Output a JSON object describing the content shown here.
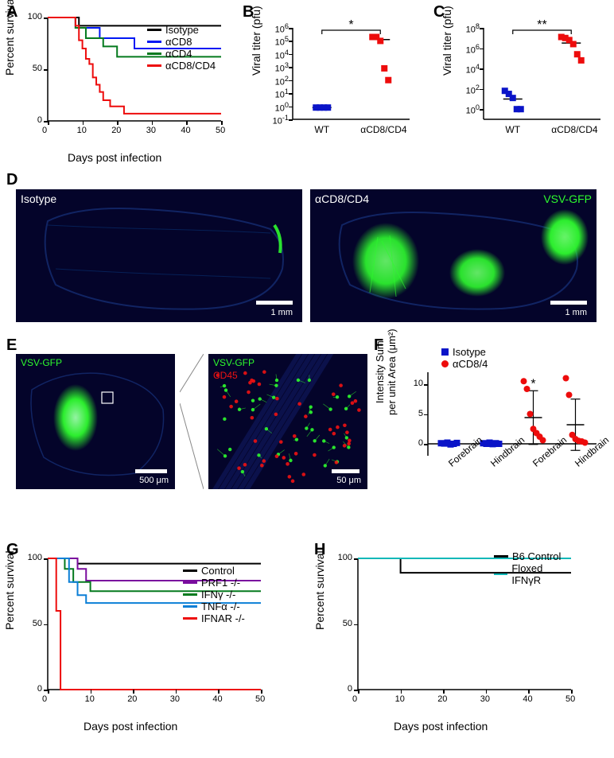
{
  "panelA": {
    "label": "A",
    "type": "line",
    "ylabel": "Percent survival",
    "xlabel": "Days post infection",
    "xlim": [
      0,
      50
    ],
    "ylim": [
      0,
      100
    ],
    "xticks": [
      0,
      10,
      20,
      30,
      40,
      50
    ],
    "yticks": [
      0,
      50,
      100
    ],
    "series": [
      {
        "name": "Isotype",
        "color": "#000000",
        "points": [
          [
            0,
            100
          ],
          [
            9,
            100
          ],
          [
            9,
            92
          ],
          [
            50,
            92
          ]
        ]
      },
      {
        "name": "αCD8",
        "color": "#0018f4",
        "points": [
          [
            0,
            100
          ],
          [
            8,
            100
          ],
          [
            8,
            90
          ],
          [
            15,
            90
          ],
          [
            15,
            80
          ],
          [
            25,
            80
          ],
          [
            25,
            70
          ],
          [
            50,
            70
          ]
        ]
      },
      {
        "name": "αCD4",
        "color": "#057a1e",
        "points": [
          [
            0,
            100
          ],
          [
            8,
            100
          ],
          [
            8,
            90
          ],
          [
            11,
            90
          ],
          [
            11,
            80
          ],
          [
            16,
            80
          ],
          [
            16,
            72
          ],
          [
            20,
            72
          ],
          [
            20,
            62
          ],
          [
            50,
            62
          ]
        ]
      },
      {
        "name": "αCD8/CD4",
        "color": "#ed0c0c",
        "points": [
          [
            0,
            100
          ],
          [
            8,
            100
          ],
          [
            8,
            92
          ],
          [
            9,
            92
          ],
          [
            9,
            78
          ],
          [
            10,
            78
          ],
          [
            10,
            70
          ],
          [
            11,
            70
          ],
          [
            11,
            60
          ],
          [
            12,
            60
          ],
          [
            12,
            55
          ],
          [
            13,
            55
          ],
          [
            13,
            42
          ],
          [
            14,
            42
          ],
          [
            14,
            35
          ],
          [
            15,
            35
          ],
          [
            15,
            28
          ],
          [
            16,
            28
          ],
          [
            16,
            20
          ],
          [
            18,
            20
          ],
          [
            18,
            14
          ],
          [
            22,
            14
          ],
          [
            22,
            7
          ],
          [
            50,
            7
          ]
        ]
      }
    ]
  },
  "panelB": {
    "label": "B",
    "type": "scatter",
    "ylabel": "Viral titer (pfu)",
    "yscale": "log",
    "ylim_exp": [
      -1,
      6
    ],
    "yticks_exp": [
      -1,
      0,
      1,
      2,
      3,
      4,
      5,
      6
    ],
    "xcats": [
      "WT",
      "αCD8/CD4"
    ],
    "annotation": "*",
    "groups": [
      {
        "color": "#0a14c8",
        "shape": "square",
        "x": 0,
        "vals_exp": [
          -0.1,
          -0.1,
          -0.1,
          -0.1
        ],
        "mean_exp": -0.1
      },
      {
        "color": "#ed0c0c",
        "shape": "square",
        "x": 1,
        "vals_exp": [
          5.3,
          5.3,
          5.0,
          2.9,
          2.0
        ],
        "mean_exp": 5.1
      }
    ]
  },
  "panelC": {
    "label": "C",
    "type": "scatter",
    "ylabel": "Viral titer (pfu)",
    "yscale": "log",
    "ylim_exp": [
      -1,
      8
    ],
    "yticks_exp": [
      0,
      2,
      4,
      6,
      8
    ],
    "xcats": [
      "WT",
      "αCD8/CD4"
    ],
    "annotation": "**",
    "groups": [
      {
        "color": "#0a14c8",
        "shape": "square",
        "x": 0,
        "vals_exp": [
          1.8,
          1.5,
          1.1,
          0.0,
          0.0
        ],
        "mean_exp": 1.0
      },
      {
        "color": "#ed0c0c",
        "shape": "square",
        "x": 1,
        "vals_exp": [
          7.1,
          7.0,
          6.8,
          6.4,
          5.4,
          4.8
        ],
        "mean_exp": 6.5
      }
    ]
  },
  "panelD": {
    "label": "D",
    "images": [
      {
        "treatment": "Isotype",
        "gfp_label": "",
        "scale": "1 mm"
      },
      {
        "treatment": "αCD8/CD4",
        "gfp_label": "VSV-GFP",
        "scale": "1 mm"
      }
    ],
    "gfp_color": "#2efa2e"
  },
  "panelE": {
    "label": "E",
    "gfp_label": "VSV-GFP",
    "cd45_label": "CD45",
    "scale_left": "500 μm",
    "scale_right": "50 μm",
    "gfp_color": "#2efa2e",
    "cd45_color": "#ef1212"
  },
  "panelF": {
    "label": "F",
    "type": "scatter",
    "ylabel": "Intensity Sum\nper unit Area (μm²)",
    "ylim": [
      -2,
      12
    ],
    "yticks": [
      0,
      5,
      10
    ],
    "xcats": [
      "Forebrain",
      "Hindbrain",
      "Forebrain",
      "Hindbrain"
    ],
    "legend": [
      {
        "name": "Isotype",
        "color": "#0a14c8",
        "shape": "square"
      },
      {
        "name": "αCD8/4",
        "color": "#ed0c0c",
        "shape": "circle"
      }
    ],
    "groups": [
      {
        "color": "#0a14c8",
        "shape": "square",
        "x": 0,
        "vals": [
          0.1,
          0.05,
          0.2,
          -0.1,
          0.0,
          0.15
        ],
        "mean": 0.1,
        "err": 0.3,
        "sig": ""
      },
      {
        "color": "#0a14c8",
        "shape": "square",
        "x": 1,
        "vals": [
          0.1,
          0.0,
          0.2,
          -0.05,
          0.1,
          0.0
        ],
        "mean": 0.1,
        "err": 0.3,
        "sig": ""
      },
      {
        "color": "#ed0c0c",
        "shape": "circle",
        "x": 2,
        "vals": [
          10.5,
          9.2,
          5.0,
          2.5,
          1.8,
          1.2,
          0.6
        ],
        "mean": 4.4,
        "err": 4.5,
        "sig": "*"
      },
      {
        "color": "#ed0c0c",
        "shape": "circle",
        "x": 3,
        "vals": [
          11.0,
          8.2,
          1.5,
          0.8,
          0.5,
          0.4,
          0.2
        ],
        "mean": 3.2,
        "err": 4.3,
        "sig": ""
      }
    ]
  },
  "panelG": {
    "label": "G",
    "type": "line",
    "ylabel": "Percent survival",
    "xlabel": "Days post infection",
    "xlim": [
      0,
      50
    ],
    "ylim": [
      0,
      100
    ],
    "xticks": [
      0,
      10,
      20,
      30,
      40,
      50
    ],
    "yticks": [
      0,
      50,
      100
    ],
    "series": [
      {
        "name": "Control",
        "color": "#000000",
        "points": [
          [
            0,
            100
          ],
          [
            7,
            100
          ],
          [
            7,
            96
          ],
          [
            50,
            96
          ]
        ]
      },
      {
        "name": "PRF1 -/-",
        "color": "#7a0d9e",
        "points": [
          [
            0,
            100
          ],
          [
            7,
            100
          ],
          [
            7,
            92
          ],
          [
            9,
            92
          ],
          [
            9,
            83
          ],
          [
            50,
            83
          ]
        ]
      },
      {
        "name": "IFNγ -/-",
        "color": "#057a1e",
        "points": [
          [
            0,
            100
          ],
          [
            4,
            100
          ],
          [
            4,
            92
          ],
          [
            6,
            92
          ],
          [
            6,
            82
          ],
          [
            10,
            82
          ],
          [
            10,
            75
          ],
          [
            50,
            75
          ]
        ]
      },
      {
        "name": "TNFα -/-",
        "color": "#0b7fd6",
        "points": [
          [
            0,
            100
          ],
          [
            5,
            100
          ],
          [
            5,
            82
          ],
          [
            7,
            82
          ],
          [
            7,
            72
          ],
          [
            9,
            72
          ],
          [
            9,
            66
          ],
          [
            50,
            66
          ]
        ]
      },
      {
        "name": "IFNAR -/-",
        "color": "#ed0c0c",
        "points": [
          [
            0,
            100
          ],
          [
            2,
            100
          ],
          [
            2,
            60
          ],
          [
            3,
            60
          ],
          [
            3,
            0
          ],
          [
            50,
            0
          ]
        ]
      }
    ]
  },
  "panelH": {
    "label": "H",
    "type": "line",
    "ylabel": "Percent survival",
    "xlabel": "Days post infection",
    "xlim": [
      0,
      50
    ],
    "ylim": [
      0,
      100
    ],
    "xticks": [
      0,
      10,
      20,
      30,
      40,
      50
    ],
    "yticks": [
      0,
      50,
      100
    ],
    "series": [
      {
        "name": "B6 Control",
        "color": "#000000",
        "points": [
          [
            0,
            100
          ],
          [
            10,
            100
          ],
          [
            10,
            89
          ],
          [
            50,
            89
          ]
        ]
      },
      {
        "name": "Floxed IFNγR",
        "color": "#10b8b8",
        "points": [
          [
            0,
            100
          ],
          [
            50,
            100
          ]
        ]
      }
    ]
  }
}
